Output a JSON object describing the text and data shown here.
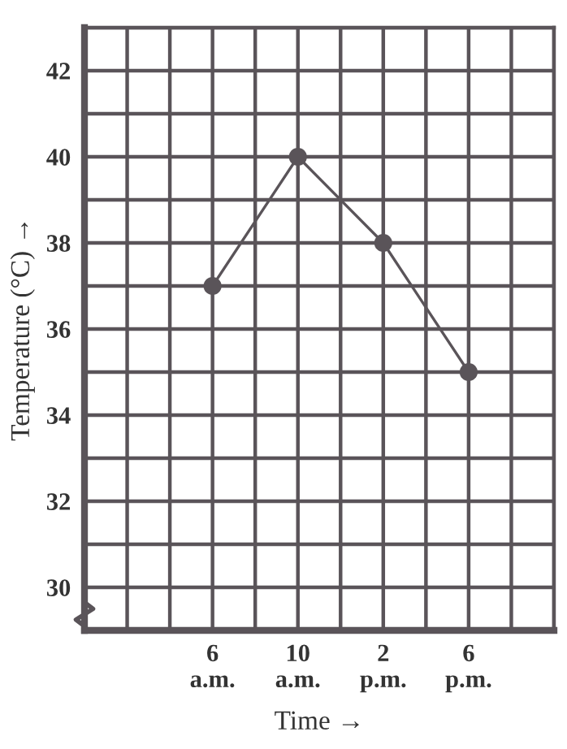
{
  "chart_data": {
    "type": "line",
    "xlabel": "Time →",
    "ylabel": "Temperature (°C) →",
    "categories": [
      "6\na.m.",
      "10\na.m.",
      "2\np.m.",
      "6\np.m."
    ],
    "series": [
      {
        "color": "#5a5459",
        "values": [
          37,
          40,
          38,
          35
        ]
      }
    ],
    "ylim": [
      29,
      43
    ],
    "yticks": [
      30,
      32,
      34,
      36,
      38,
      40,
      42
    ],
    "grid": true,
    "marker": "circle",
    "line_style": "solid"
  }
}
